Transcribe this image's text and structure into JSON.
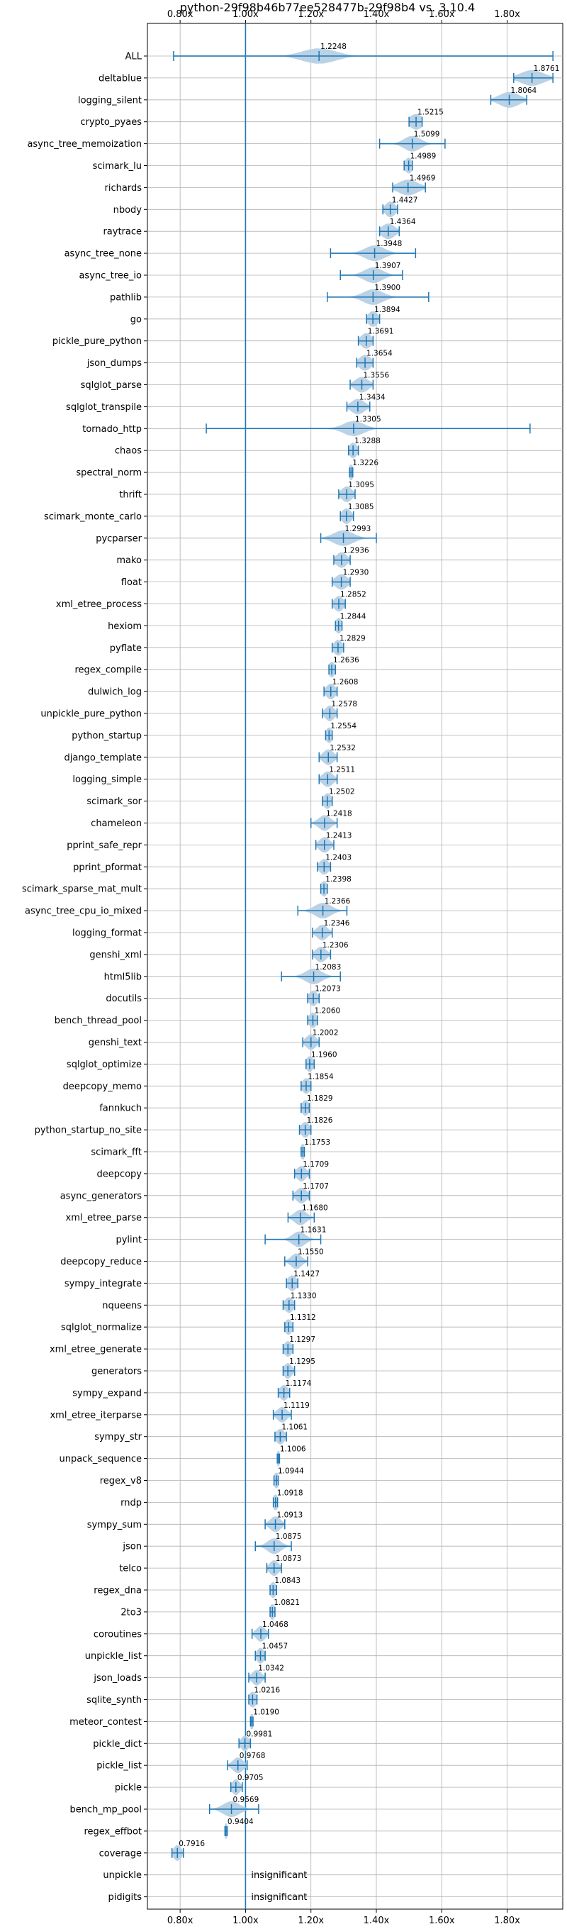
{
  "chart_data": {
    "type": "violin",
    "title": "python-29f98b46b77ee528477b-29f98b4 vs. 3.10.4",
    "xlim": [
      0.7,
      1.97
    ],
    "xticks": [
      0.8,
      1.0,
      1.2,
      1.4,
      1.6,
      1.8
    ],
    "xtick_labels": [
      "0.80x",
      "1.00x",
      "1.20x",
      "1.40x",
      "1.60x",
      "1.80x"
    ],
    "reference_line": 1.0,
    "grid": true,
    "colors": {
      "line": "#1f77b4",
      "fill": "#b3cde3",
      "grid": "#b0b0b0"
    },
    "insignificant_label": "insignificant",
    "benchmarks": [
      {
        "name": "ALL",
        "mean": 1.2248,
        "min": 0.78,
        "max": 1.94,
        "spread": 0.05,
        "label": "1.2248"
      },
      {
        "name": "deltablue",
        "mean": 1.8761,
        "min": 1.82,
        "max": 1.94,
        "spread": 0.035,
        "label": "1.8761"
      },
      {
        "name": "logging_silent",
        "mean": 1.8064,
        "min": 1.75,
        "max": 1.86,
        "spread": 0.03,
        "label": "1.8064"
      },
      {
        "name": "crypto_pyaes",
        "mean": 1.5215,
        "min": 1.5,
        "max": 1.54,
        "spread": 0.02,
        "label": "1.5215"
      },
      {
        "name": "async_tree_memoization",
        "mean": 1.5099,
        "min": 1.41,
        "max": 1.61,
        "spread": 0.025,
        "label": "1.5099"
      },
      {
        "name": "scimark_lu",
        "mean": 1.4989,
        "min": 1.485,
        "max": 1.51,
        "spread": 0.012,
        "label": "1.4989"
      },
      {
        "name": "richards",
        "mean": 1.4969,
        "min": 1.45,
        "max": 1.55,
        "spread": 0.03,
        "label": "1.4969"
      },
      {
        "name": "nbody",
        "mean": 1.4427,
        "min": 1.42,
        "max": 1.465,
        "spread": 0.015,
        "label": "1.4427"
      },
      {
        "name": "raytrace",
        "mean": 1.4364,
        "min": 1.41,
        "max": 1.47,
        "spread": 0.02,
        "label": "1.4364"
      },
      {
        "name": "async_tree_none",
        "mean": 1.3948,
        "min": 1.26,
        "max": 1.52,
        "spread": 0.03,
        "label": "1.3948"
      },
      {
        "name": "async_tree_io",
        "mean": 1.3907,
        "min": 1.29,
        "max": 1.48,
        "spread": 0.028,
        "label": "1.3907"
      },
      {
        "name": "pathlib",
        "mean": 1.39,
        "min": 1.25,
        "max": 1.56,
        "spread": 0.03,
        "label": "1.3900"
      },
      {
        "name": "go",
        "mean": 1.3894,
        "min": 1.37,
        "max": 1.41,
        "spread": 0.015,
        "label": "1.3894"
      },
      {
        "name": "pickle_pure_python",
        "mean": 1.3691,
        "min": 1.345,
        "max": 1.39,
        "spread": 0.016,
        "label": "1.3691"
      },
      {
        "name": "json_dumps",
        "mean": 1.3654,
        "min": 1.34,
        "max": 1.39,
        "spread": 0.018,
        "label": "1.3654"
      },
      {
        "name": "sqlglot_parse",
        "mean": 1.3556,
        "min": 1.32,
        "max": 1.39,
        "spread": 0.02,
        "label": "1.3556"
      },
      {
        "name": "sqlglot_transpile",
        "mean": 1.3434,
        "min": 1.31,
        "max": 1.38,
        "spread": 0.02,
        "label": "1.3434"
      },
      {
        "name": "tornado_http",
        "mean": 1.3305,
        "min": 0.88,
        "max": 1.87,
        "spread": 0.03,
        "label": "1.3305"
      },
      {
        "name": "chaos",
        "mean": 1.3288,
        "min": 1.315,
        "max": 1.345,
        "spread": 0.012,
        "label": "1.3288"
      },
      {
        "name": "spectral_norm",
        "mean": 1.3226,
        "min": 1.318,
        "max": 1.328,
        "spread": 0.008,
        "label": "1.3226"
      },
      {
        "name": "thrift",
        "mean": 1.3095,
        "min": 1.285,
        "max": 1.335,
        "spread": 0.016,
        "label": "1.3095"
      },
      {
        "name": "scimark_monte_carlo",
        "mean": 1.3085,
        "min": 1.29,
        "max": 1.33,
        "spread": 0.014,
        "label": "1.3085"
      },
      {
        "name": "pycparser",
        "mean": 1.2993,
        "min": 1.23,
        "max": 1.4,
        "spread": 0.03,
        "label": "1.2993"
      },
      {
        "name": "mako",
        "mean": 1.2936,
        "min": 1.27,
        "max": 1.32,
        "spread": 0.016,
        "label": "1.2936"
      },
      {
        "name": "float",
        "mean": 1.293,
        "min": 1.265,
        "max": 1.32,
        "spread": 0.018,
        "label": "1.2930"
      },
      {
        "name": "xml_etree_process",
        "mean": 1.2852,
        "min": 1.265,
        "max": 1.305,
        "spread": 0.014,
        "label": "1.2852"
      },
      {
        "name": "hexiom",
        "mean": 1.2844,
        "min": 1.275,
        "max": 1.295,
        "spread": 0.01,
        "label": "1.2844"
      },
      {
        "name": "pyflate",
        "mean": 1.2829,
        "min": 1.265,
        "max": 1.3,
        "spread": 0.013,
        "label": "1.2829"
      },
      {
        "name": "regex_compile",
        "mean": 1.2636,
        "min": 1.255,
        "max": 1.275,
        "spread": 0.01,
        "label": "1.2636"
      },
      {
        "name": "dulwich_log",
        "mean": 1.2608,
        "min": 1.24,
        "max": 1.28,
        "spread": 0.014,
        "label": "1.2608"
      },
      {
        "name": "unpickle_pure_python",
        "mean": 1.2578,
        "min": 1.235,
        "max": 1.28,
        "spread": 0.014,
        "label": "1.2578"
      },
      {
        "name": "python_startup",
        "mean": 1.2554,
        "min": 1.245,
        "max": 1.265,
        "spread": 0.01,
        "label": "1.2554"
      },
      {
        "name": "django_template",
        "mean": 1.2532,
        "min": 1.225,
        "max": 1.28,
        "spread": 0.016,
        "label": "1.2532"
      },
      {
        "name": "logging_simple",
        "mean": 1.2511,
        "min": 1.225,
        "max": 1.28,
        "spread": 0.016,
        "label": "1.2511"
      },
      {
        "name": "scimark_sor",
        "mean": 1.2502,
        "min": 1.235,
        "max": 1.265,
        "spread": 0.012,
        "label": "1.2502"
      },
      {
        "name": "chameleon",
        "mean": 1.2418,
        "min": 1.2,
        "max": 1.28,
        "spread": 0.018,
        "label": "1.2418"
      },
      {
        "name": "pprint_safe_repr",
        "mean": 1.2413,
        "min": 1.215,
        "max": 1.27,
        "spread": 0.016,
        "label": "1.2413"
      },
      {
        "name": "pprint_pformat",
        "mean": 1.2403,
        "min": 1.22,
        "max": 1.26,
        "spread": 0.014,
        "label": "1.2403"
      },
      {
        "name": "scimark_sparse_mat_mult",
        "mean": 1.2398,
        "min": 1.23,
        "max": 1.25,
        "spread": 0.01,
        "label": "1.2398"
      },
      {
        "name": "async_tree_cpu_io_mixed",
        "mean": 1.2366,
        "min": 1.16,
        "max": 1.31,
        "spread": 0.025,
        "label": "1.2366"
      },
      {
        "name": "logging_format",
        "mean": 1.2346,
        "min": 1.205,
        "max": 1.265,
        "spread": 0.016,
        "label": "1.2346"
      },
      {
        "name": "genshi_xml",
        "mean": 1.2306,
        "min": 1.205,
        "max": 1.26,
        "spread": 0.016,
        "label": "1.2306"
      },
      {
        "name": "html5lib",
        "mean": 1.2083,
        "min": 1.11,
        "max": 1.29,
        "spread": 0.025,
        "label": "1.2083"
      },
      {
        "name": "docutils",
        "mean": 1.2073,
        "min": 1.19,
        "max": 1.225,
        "spread": 0.013,
        "label": "1.2073"
      },
      {
        "name": "bench_thread_pool",
        "mean": 1.206,
        "min": 1.19,
        "max": 1.22,
        "spread": 0.012,
        "label": "1.2060"
      },
      {
        "name": "genshi_text",
        "mean": 1.2002,
        "min": 1.175,
        "max": 1.225,
        "spread": 0.015,
        "label": "1.2002"
      },
      {
        "name": "sqlglot_optimize",
        "mean": 1.196,
        "min": 1.185,
        "max": 1.21,
        "spread": 0.011,
        "label": "1.1960"
      },
      {
        "name": "deepcopy_memo",
        "mean": 1.1854,
        "min": 1.17,
        "max": 1.2,
        "spread": 0.012,
        "label": "1.1854"
      },
      {
        "name": "fannkuch",
        "mean": 1.1829,
        "min": 1.17,
        "max": 1.195,
        "spread": 0.011,
        "label": "1.1829"
      },
      {
        "name": "python_startup_no_site",
        "mean": 1.1826,
        "min": 1.165,
        "max": 1.2,
        "spread": 0.013,
        "label": "1.1826"
      },
      {
        "name": "scimark_fft",
        "mean": 1.1753,
        "min": 1.17,
        "max": 1.18,
        "spread": 0.008,
        "label": "1.1753"
      },
      {
        "name": "deepcopy",
        "mean": 1.1709,
        "min": 1.15,
        "max": 1.195,
        "spread": 0.014,
        "label": "1.1709"
      },
      {
        "name": "async_generators",
        "mean": 1.1707,
        "min": 1.145,
        "max": 1.195,
        "spread": 0.016,
        "label": "1.1707"
      },
      {
        "name": "xml_etree_parse",
        "mean": 1.168,
        "min": 1.13,
        "max": 1.21,
        "spread": 0.018,
        "label": "1.1680"
      },
      {
        "name": "pylint",
        "mean": 1.1631,
        "min": 1.06,
        "max": 1.23,
        "spread": 0.02,
        "label": "1.1631"
      },
      {
        "name": "deepcopy_reduce",
        "mean": 1.155,
        "min": 1.12,
        "max": 1.19,
        "spread": 0.016,
        "label": "1.1550"
      },
      {
        "name": "sympy_integrate",
        "mean": 1.1427,
        "min": 1.125,
        "max": 1.16,
        "spread": 0.014,
        "label": "1.1427"
      },
      {
        "name": "nqueens",
        "mean": 1.133,
        "min": 1.115,
        "max": 1.15,
        "spread": 0.013,
        "label": "1.1330"
      },
      {
        "name": "sqlglot_normalize",
        "mean": 1.1312,
        "min": 1.12,
        "max": 1.145,
        "spread": 0.011,
        "label": "1.1312"
      },
      {
        "name": "xml_etree_generate",
        "mean": 1.1297,
        "min": 1.115,
        "max": 1.145,
        "spread": 0.012,
        "label": "1.1297"
      },
      {
        "name": "generators",
        "mean": 1.1295,
        "min": 1.115,
        "max": 1.15,
        "spread": 0.012,
        "label": "1.1295"
      },
      {
        "name": "sympy_expand",
        "mean": 1.1174,
        "min": 1.1,
        "max": 1.135,
        "spread": 0.013,
        "label": "1.1174"
      },
      {
        "name": "xml_etree_iterparse",
        "mean": 1.1119,
        "min": 1.085,
        "max": 1.14,
        "spread": 0.015,
        "label": "1.1119"
      },
      {
        "name": "sympy_str",
        "mean": 1.1061,
        "min": 1.09,
        "max": 1.125,
        "spread": 0.013,
        "label": "1.1061"
      },
      {
        "name": "unpack_sequence",
        "mean": 1.1006,
        "min": 1.097,
        "max": 1.104,
        "spread": 0.006,
        "label": "1.1006"
      },
      {
        "name": "regex_v8",
        "mean": 1.0944,
        "min": 1.087,
        "max": 1.1,
        "spread": 0.009,
        "label": "1.0944"
      },
      {
        "name": "rndp",
        "mean": 1.0918,
        "min": 1.085,
        "max": 1.098,
        "spread": 0.009,
        "label": "1.0918"
      },
      {
        "name": "sympy_sum",
        "mean": 1.0913,
        "min": 1.06,
        "max": 1.12,
        "spread": 0.016,
        "label": "1.0913"
      },
      {
        "name": "json",
        "mean": 1.0875,
        "min": 1.03,
        "max": 1.14,
        "spread": 0.02,
        "label": "1.0875"
      },
      {
        "name": "telco",
        "mean": 1.0873,
        "min": 1.065,
        "max": 1.11,
        "spread": 0.014,
        "label": "1.0873"
      },
      {
        "name": "regex_dna",
        "mean": 1.0843,
        "min": 1.075,
        "max": 1.095,
        "spread": 0.01,
        "label": "1.0843"
      },
      {
        "name": "2to3",
        "mean": 1.0821,
        "min": 1.075,
        "max": 1.09,
        "spread": 0.009,
        "label": "1.0821"
      },
      {
        "name": "coroutines",
        "mean": 1.0468,
        "min": 1.02,
        "max": 1.07,
        "spread": 0.014,
        "label": "1.0468"
      },
      {
        "name": "unpickle_list",
        "mean": 1.0457,
        "min": 1.03,
        "max": 1.06,
        "spread": 0.012,
        "label": "1.0457"
      },
      {
        "name": "json_loads",
        "mean": 1.0342,
        "min": 1.01,
        "max": 1.06,
        "spread": 0.014,
        "label": "1.0342"
      },
      {
        "name": "sqlite_synth",
        "mean": 1.0216,
        "min": 1.01,
        "max": 1.035,
        "spread": 0.012,
        "label": "1.0216"
      },
      {
        "name": "meteor_contest",
        "mean": 1.019,
        "min": 1.015,
        "max": 1.023,
        "spread": 0.007,
        "label": "1.0190"
      },
      {
        "name": "pickle_dict",
        "mean": 0.9981,
        "min": 0.98,
        "max": 1.015,
        "spread": 0.012,
        "label": "0.9981"
      },
      {
        "name": "pickle_list",
        "mean": 0.9768,
        "min": 0.945,
        "max": 1.005,
        "spread": 0.016,
        "label": "0.9768"
      },
      {
        "name": "pickle",
        "mean": 0.9705,
        "min": 0.955,
        "max": 0.99,
        "spread": 0.012,
        "label": "0.9705"
      },
      {
        "name": "bench_mp_pool",
        "mean": 0.9569,
        "min": 0.89,
        "max": 1.04,
        "spread": 0.025,
        "label": "0.9569"
      },
      {
        "name": "regex_effbot",
        "mean": 0.9404,
        "min": 0.937,
        "max": 0.944,
        "spread": 0.006,
        "label": "0.9404"
      },
      {
        "name": "coverage",
        "mean": 0.7916,
        "min": 0.775,
        "max": 0.81,
        "spread": 0.012,
        "label": "0.7916"
      },
      {
        "name": "unpickle",
        "insignificant": true
      },
      {
        "name": "pidigits",
        "insignificant": true
      }
    ]
  }
}
